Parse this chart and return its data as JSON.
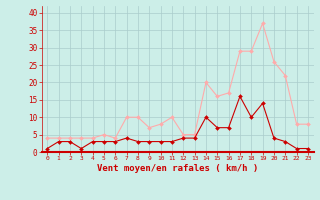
{
  "hours": [
    0,
    1,
    2,
    3,
    4,
    5,
    6,
    7,
    8,
    9,
    10,
    11,
    12,
    13,
    14,
    15,
    16,
    17,
    18,
    19,
    20,
    21,
    22,
    23
  ],
  "wind_avg": [
    1,
    3,
    3,
    1,
    3,
    3,
    3,
    4,
    3,
    3,
    3,
    3,
    4,
    4,
    10,
    7,
    7,
    16,
    10,
    14,
    4,
    3,
    1,
    1
  ],
  "wind_gust": [
    4,
    4,
    4,
    4,
    4,
    5,
    4,
    10,
    10,
    7,
    8,
    10,
    5,
    5,
    20,
    16,
    17,
    29,
    29,
    37,
    26,
    22,
    8,
    8
  ],
  "line_avg_color": "#cc0000",
  "line_gust_color": "#ffaaaa",
  "marker_color_avg": "#cc0000",
  "marker_color_gust": "#ffaaaa",
  "bg_color": "#cceee8",
  "grid_color": "#aacccc",
  "xlabel": "Vent moyen/en rafales ( km/h )",
  "xlabel_color": "#cc0000",
  "tick_color": "#cc0000",
  "yticks": [
    0,
    5,
    10,
    15,
    20,
    25,
    30,
    35,
    40
  ],
  "ylim": [
    0,
    42
  ],
  "xlim": [
    -0.5,
    23.5
  ]
}
